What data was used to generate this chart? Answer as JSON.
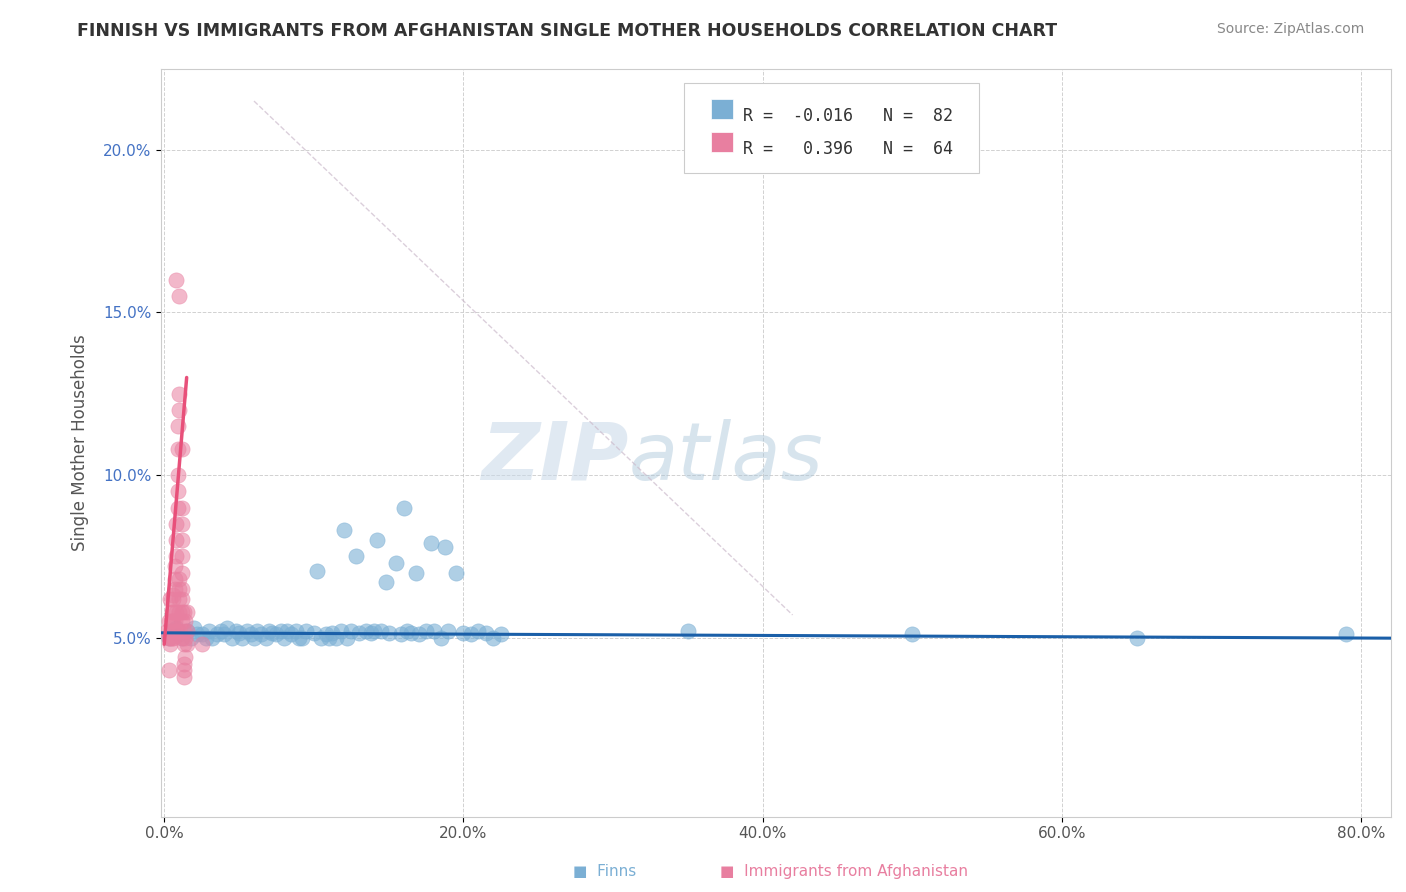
{
  "title": "FINNISH VS IMMIGRANTS FROM AFGHANISTAN SINGLE MOTHER HOUSEHOLDS CORRELATION CHART",
  "source": "Source: ZipAtlas.com",
  "ylabel": "Single Mother Households",
  "xlabel": "",
  "xlim": [
    -0.002,
    0.82
  ],
  "ylim": [
    -0.005,
    0.225
  ],
  "xticks": [
    0.0,
    0.2,
    0.4,
    0.6,
    0.8
  ],
  "xticklabels": [
    "0.0%",
    "20.0%",
    "40.0%",
    "60.0%",
    "80.0%"
  ],
  "yticks": [
    0.05,
    0.1,
    0.15,
    0.2
  ],
  "yticklabels": [
    "5.0%",
    "10.0%",
    "15.0%",
    "20.0%"
  ],
  "legend_R_finns": "R = -0.016",
  "legend_N_finns": "N = 82",
  "legend_R_afghan": "R =  0.396",
  "legend_N_afghan": "N = 64",
  "legend_label_finns": "Finns",
  "legend_label_afghan": "Immigrants from Afghanistan",
  "finns_color": "#7bafd4",
  "afghan_color": "#e87fa0",
  "watermark_zip": "ZIP",
  "watermark_atlas": "atlas",
  "background_color": "#ffffff",
  "grid_color": "#cccccc",
  "finns_scatter": [
    [
      0.005,
      0.052
    ],
    [
      0.003,
      0.05
    ],
    [
      0.008,
      0.053
    ],
    [
      0.01,
      0.051
    ],
    [
      0.012,
      0.05
    ],
    [
      0.015,
      0.052
    ],
    [
      0.018,
      0.05
    ],
    [
      0.02,
      0.053
    ],
    [
      0.022,
      0.051
    ],
    [
      0.025,
      0.051
    ],
    [
      0.028,
      0.05
    ],
    [
      0.03,
      0.052
    ],
    [
      0.032,
      0.05
    ],
    [
      0.035,
      0.051
    ],
    [
      0.038,
      0.052
    ],
    [
      0.04,
      0.051
    ],
    [
      0.042,
      0.053
    ],
    [
      0.045,
      0.05
    ],
    [
      0.048,
      0.052
    ],
    [
      0.05,
      0.0515
    ],
    [
      0.052,
      0.05
    ],
    [
      0.055,
      0.052
    ],
    [
      0.058,
      0.051
    ],
    [
      0.06,
      0.05
    ],
    [
      0.062,
      0.052
    ],
    [
      0.065,
      0.051
    ],
    [
      0.068,
      0.05
    ],
    [
      0.07,
      0.052
    ],
    [
      0.072,
      0.0515
    ],
    [
      0.075,
      0.051
    ],
    [
      0.078,
      0.052
    ],
    [
      0.08,
      0.05
    ],
    [
      0.082,
      0.052
    ],
    [
      0.085,
      0.051
    ],
    [
      0.088,
      0.052
    ],
    [
      0.09,
      0.05
    ],
    [
      0.092,
      0.05
    ],
    [
      0.095,
      0.052
    ],
    [
      0.1,
      0.0515
    ],
    [
      0.102,
      0.0705
    ],
    [
      0.105,
      0.05
    ],
    [
      0.108,
      0.051
    ],
    [
      0.11,
      0.05
    ],
    [
      0.112,
      0.0515
    ],
    [
      0.115,
      0.05
    ],
    [
      0.118,
      0.052
    ],
    [
      0.12,
      0.083
    ],
    [
      0.122,
      0.05
    ],
    [
      0.125,
      0.052
    ],
    [
      0.128,
      0.075
    ],
    [
      0.13,
      0.0515
    ],
    [
      0.135,
      0.052
    ],
    [
      0.138,
      0.0515
    ],
    [
      0.14,
      0.052
    ],
    [
      0.142,
      0.08
    ],
    [
      0.145,
      0.052
    ],
    [
      0.148,
      0.067
    ],
    [
      0.15,
      0.0515
    ],
    [
      0.155,
      0.073
    ],
    [
      0.158,
      0.051
    ],
    [
      0.16,
      0.09
    ],
    [
      0.162,
      0.052
    ],
    [
      0.165,
      0.0515
    ],
    [
      0.168,
      0.07
    ],
    [
      0.17,
      0.051
    ],
    [
      0.175,
      0.052
    ],
    [
      0.178,
      0.079
    ],
    [
      0.18,
      0.052
    ],
    [
      0.185,
      0.05
    ],
    [
      0.188,
      0.078
    ],
    [
      0.19,
      0.052
    ],
    [
      0.195,
      0.07
    ],
    [
      0.2,
      0.0515
    ],
    [
      0.205,
      0.051
    ],
    [
      0.21,
      0.052
    ],
    [
      0.215,
      0.0515
    ],
    [
      0.22,
      0.05
    ],
    [
      0.225,
      0.051
    ],
    [
      0.35,
      0.052
    ],
    [
      0.5,
      0.051
    ],
    [
      0.65,
      0.05
    ],
    [
      0.79,
      0.051
    ]
  ],
  "afghan_scatter": [
    [
      0.002,
      0.052
    ],
    [
      0.003,
      0.05
    ],
    [
      0.003,
      0.055
    ],
    [
      0.004,
      0.05
    ],
    [
      0.004,
      0.062
    ],
    [
      0.004,
      0.048
    ],
    [
      0.005,
      0.058
    ],
    [
      0.005,
      0.05
    ],
    [
      0.005,
      0.055
    ],
    [
      0.005,
      0.052
    ],
    [
      0.006,
      0.062
    ],
    [
      0.006,
      0.055
    ],
    [
      0.006,
      0.05
    ],
    [
      0.006,
      0.058
    ],
    [
      0.006,
      0.063
    ],
    [
      0.007,
      0.065
    ],
    [
      0.007,
      0.068
    ],
    [
      0.007,
      0.072
    ],
    [
      0.007,
      0.052
    ],
    [
      0.007,
      0.055
    ],
    [
      0.008,
      0.075
    ],
    [
      0.008,
      0.08
    ],
    [
      0.008,
      0.085
    ],
    [
      0.008,
      0.052
    ],
    [
      0.008,
      0.058
    ],
    [
      0.009,
      0.09
    ],
    [
      0.009,
      0.095
    ],
    [
      0.009,
      0.1
    ],
    [
      0.009,
      0.108
    ],
    [
      0.009,
      0.115
    ],
    [
      0.01,
      0.12
    ],
    [
      0.01,
      0.125
    ],
    [
      0.01,
      0.052
    ],
    [
      0.01,
      0.058
    ],
    [
      0.01,
      0.062
    ],
    [
      0.01,
      0.065
    ],
    [
      0.01,
      0.068
    ],
    [
      0.01,
      0.155
    ],
    [
      0.012,
      0.05
    ],
    [
      0.012,
      0.055
    ],
    [
      0.012,
      0.058
    ],
    [
      0.012,
      0.062
    ],
    [
      0.012,
      0.065
    ],
    [
      0.012,
      0.07
    ],
    [
      0.012,
      0.075
    ],
    [
      0.012,
      0.08
    ],
    [
      0.012,
      0.085
    ],
    [
      0.012,
      0.09
    ],
    [
      0.013,
      0.048
    ],
    [
      0.013,
      0.052
    ],
    [
      0.013,
      0.058
    ],
    [
      0.013,
      0.042
    ],
    [
      0.013,
      0.038
    ],
    [
      0.013,
      0.04
    ],
    [
      0.014,
      0.044
    ],
    [
      0.014,
      0.05
    ],
    [
      0.014,
      0.055
    ],
    [
      0.015,
      0.048
    ],
    [
      0.015,
      0.052
    ],
    [
      0.015,
      0.058
    ],
    [
      0.008,
      0.16
    ],
    [
      0.012,
      0.108
    ],
    [
      0.003,
      0.04
    ],
    [
      0.025,
      0.048
    ]
  ]
}
